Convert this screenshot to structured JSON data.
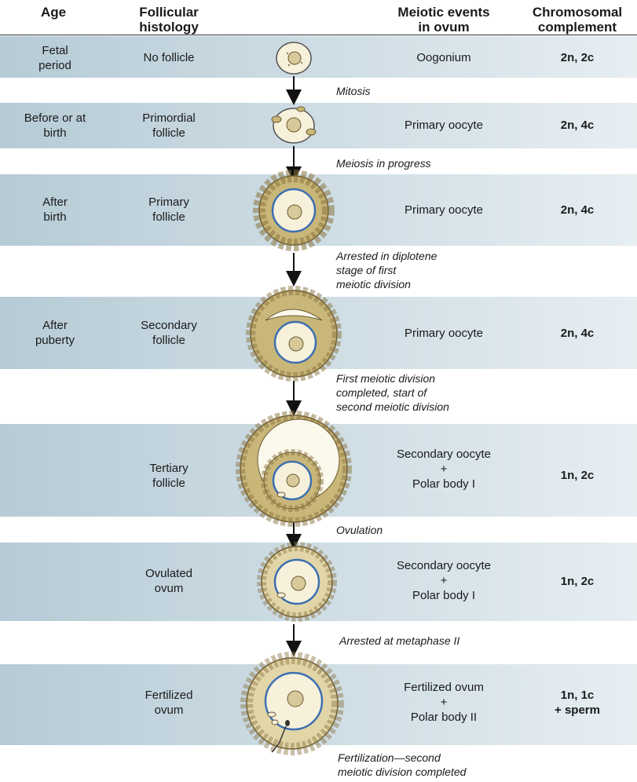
{
  "headers": {
    "age": "Age",
    "histology": [
      "Follicular",
      "histology"
    ],
    "events": [
      "Meiotic events",
      "in ovum"
    ],
    "complement": [
      "Chromosomal",
      "complement"
    ]
  },
  "rows": [
    {
      "age": [
        "Fetal",
        "period"
      ],
      "histology": [
        "No follicle"
      ],
      "event": [
        "Oogonium"
      ],
      "complement": [
        "2n, 2c"
      ]
    },
    {
      "age": [
        "Before or at",
        "birth"
      ],
      "histology": [
        "Primordial",
        "follicle"
      ],
      "event": [
        "Primary oocyte"
      ],
      "complement": [
        "2n, 4c"
      ]
    },
    {
      "age": [
        "After",
        "birth"
      ],
      "histology": [
        "Primary",
        "follicle"
      ],
      "event": [
        "Primary oocyte"
      ],
      "complement": [
        "2n, 4c"
      ]
    },
    {
      "age": [
        "After",
        "puberty"
      ],
      "histology": [
        "Secondary",
        "follicle"
      ],
      "event": [
        "Primary oocyte"
      ],
      "complement": [
        "2n, 4c"
      ]
    },
    {
      "age": [],
      "histology": [
        "Tertiary",
        "follicle"
      ],
      "event": [
        "Secondary oocyte",
        "+",
        "Polar body I"
      ],
      "complement": [
        "1n, 2c"
      ]
    },
    {
      "age": [],
      "histology": [
        "Ovulated",
        "ovum"
      ],
      "event": [
        "Secondary oocyte",
        "+",
        "Polar body I"
      ],
      "complement": [
        "1n, 2c"
      ]
    },
    {
      "age": [],
      "histology": [
        "Fertilized",
        "ovum"
      ],
      "event": [
        "Fertilized ovum",
        "+",
        "Polar body II"
      ],
      "complement": [
        "1n, 1c",
        "+ sperm"
      ]
    }
  ],
  "transitions": [
    [
      "Mitosis"
    ],
    [
      "Meiosis in progress"
    ],
    [
      "Arrested in diplotene",
      "stage of first",
      "meiotic division"
    ],
    [
      "First meiotic division",
      "completed, start of",
      "second meiotic division"
    ],
    [
      "Ovulation"
    ],
    [
      "Arrested at metaphase II"
    ],
    [
      "Fertilization—second",
      "meiotic division completed"
    ]
  ],
  "colors": {
    "band_left": "#b6cbd6",
    "band_right": "#e6eef2",
    "granulosa": "#c9b77a",
    "oocyte": "#f7f1dc",
    "zona": "#3d6fb0",
    "antrum": "#fbf8ec"
  }
}
